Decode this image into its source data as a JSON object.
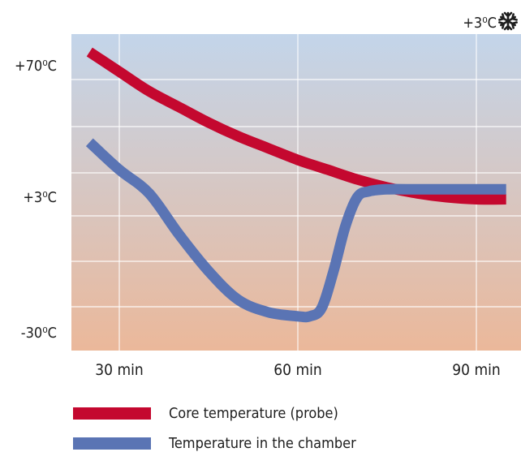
{
  "chart_data": {
    "type": "line",
    "corner_label": "+3⁰C",
    "corner_icon": "snowflake-icon",
    "background_gradient": [
      "#c3d5ea",
      "#ebb89a"
    ],
    "y_labels": [
      {
        "text": "+70⁰C",
        "value": 70
      },
      {
        "text": "+3⁰C",
        "value": 3
      },
      {
        "text": "-30⁰C",
        "value": -30
      }
    ],
    "x_labels": [
      {
        "text": "30 min",
        "value": 30
      },
      {
        "text": "60 min",
        "value": 60
      },
      {
        "text": "90 min",
        "value": 90
      }
    ],
    "series": [
      {
        "name": "Core temperature (probe)",
        "color": "#c4082f",
        "points": [
          [
            25,
            77
          ],
          [
            30,
            67
          ],
          [
            35,
            57
          ],
          [
            40,
            49
          ],
          [
            45,
            41
          ],
          [
            50,
            34
          ],
          [
            55,
            28
          ],
          [
            60,
            22
          ],
          [
            65,
            17
          ],
          [
            70,
            12
          ],
          [
            75,
            8
          ],
          [
            80,
            5
          ],
          [
            85,
            3
          ],
          [
            90,
            2.5
          ],
          [
            95,
            2.5
          ]
        ]
      },
      {
        "name": "Temperature in the chamber",
        "color": "#5a74b4",
        "points": [
          [
            25,
            31
          ],
          [
            30,
            17
          ],
          [
            35,
            5
          ],
          [
            40,
            -6
          ],
          [
            45,
            -15
          ],
          [
            50,
            -22
          ],
          [
            55,
            -25
          ],
          [
            60,
            -26
          ],
          [
            62,
            -26
          ],
          [
            64,
            -24
          ],
          [
            66,
            -15
          ],
          [
            68,
            -4
          ],
          [
            70,
            3
          ],
          [
            72,
            6
          ],
          [
            75,
            7
          ],
          [
            80,
            7
          ],
          [
            85,
            7
          ],
          [
            90,
            7
          ],
          [
            95,
            7
          ]
        ]
      }
    ],
    "grid": true
  }
}
